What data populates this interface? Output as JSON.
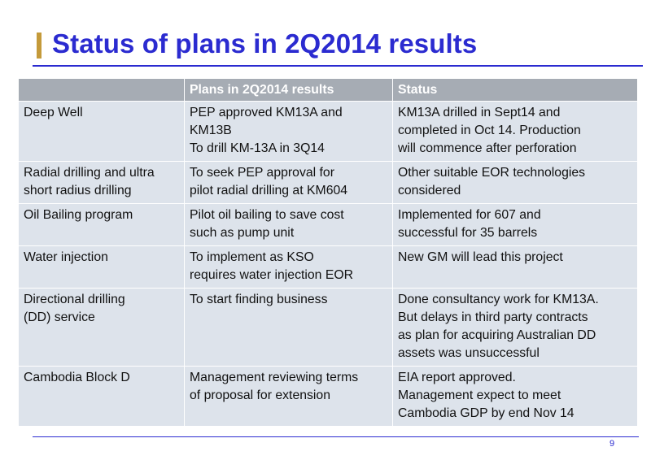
{
  "slide": {
    "title": "Status of plans in 2Q2014 results",
    "page_number": "9"
  },
  "table": {
    "headers": [
      "",
      "Plans in 2Q2014 results",
      "Status"
    ],
    "rows": [
      {
        "item": "Deep Well",
        "plan": "PEP approved KM13A and\nKM13B\nTo drill KM-13A in 3Q14",
        "status": "KM13A drilled in Sept14 and\ncompleted in Oct 14. Production\nwill commence after perforation"
      },
      {
        "item": "Radial drilling and ultra\nshort radius drilling",
        "plan": "To seek PEP approval for\npilot radial drilling at KM604",
        "status": "Other suitable EOR technologies\nconsidered"
      },
      {
        "item": "Oil Bailing program",
        "plan": "Pilot oil bailing to save cost\nsuch as pump unit",
        "status": "Implemented for 607 and\nsuccessful for 35 barrels"
      },
      {
        "item": "Water injection",
        "plan": "To implement as KSO\nrequires water injection EOR",
        "status": "New GM will lead this project"
      },
      {
        "item": "Directional drilling\n(DD) service",
        "plan": "To start finding business",
        "status": "Done consultancy work for KM13A.\nBut delays in third party contracts\nas plan for acquiring Australian DD\nassets was unsuccessful"
      },
      {
        "item": "Cambodia Block D",
        "plan": "Management reviewing terms\nof proposal for extension",
        "status": "EIA report approved.\nManagement expect to meet\nCambodia GDP by end Nov 14"
      }
    ]
  },
  "colors": {
    "title": "#2b2bd0",
    "accent_bar": "#c49a3a",
    "header_bg": "#a6acb4",
    "row_bg": "#dde3eb"
  }
}
